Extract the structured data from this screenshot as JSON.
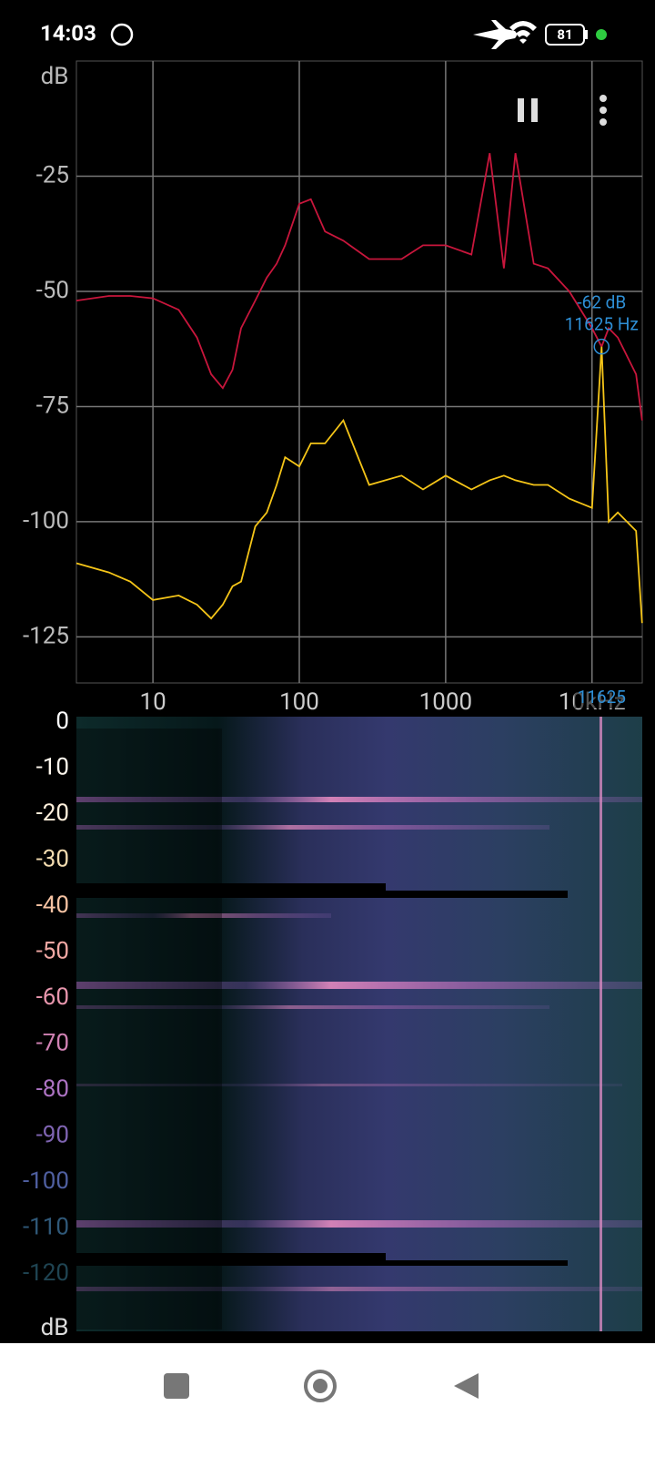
{
  "status_bar": {
    "time": "14:03",
    "battery": "81"
  },
  "chart_data": {
    "type": "line",
    "y_label": "dB",
    "log_x": true,
    "grid": true,
    "xlim": [
      3,
      22050
    ],
    "ylim": [
      -135,
      0
    ],
    "xticks": [
      10,
      100,
      1000,
      {
        "value": 10000,
        "label": "10kHz"
      }
    ],
    "yticks": [
      -25,
      -50,
      -75,
      -100,
      -125
    ],
    "x": [
      3,
      5,
      7,
      10,
      15,
      20,
      25,
      30,
      35,
      40,
      50,
      60,
      70,
      80,
      100,
      120,
      150,
      200,
      300,
      500,
      700,
      1000,
      1500,
      2000,
      2500,
      3000,
      4000,
      5000,
      7000,
      10000,
      11625,
      13000,
      15000,
      20000,
      22000
    ],
    "series": [
      {
        "color": "#c8163c",
        "values": [
          -52,
          -51,
          -51,
          -51.5,
          -54,
          -60,
          -68,
          -71,
          -67,
          -58,
          -52,
          -47,
          -44,
          -40,
          -31,
          -30,
          -37,
          -39,
          -43,
          -43,
          -40,
          -40,
          -42,
          -20,
          -45,
          -20,
          -44,
          -45,
          -50,
          -58,
          -62,
          -58,
          -60,
          -68,
          -78
        ]
      },
      {
        "color": "#f5c518",
        "values": [
          -109,
          -111,
          -113,
          -117,
          -116,
          -118,
          -121,
          -118,
          -114,
          -113,
          -101,
          -98,
          -92,
          -86,
          -88,
          -83,
          -83,
          -78,
          -92,
          -90,
          -93,
          -90,
          -93,
          -91,
          -90,
          -91,
          -92,
          -92,
          -95,
          -97,
          -62,
          -100,
          -98,
          -102,
          -122
        ]
      }
    ],
    "cursor": {
      "x": 11625,
      "y": -62,
      "label_db": "-62 dB",
      "label_hz": "11625 Hz",
      "axis_label": "11625",
      "color": "#2e8fd6"
    }
  },
  "spectrogram_scale": {
    "label": "dB",
    "ticks": [
      0,
      -10,
      -20,
      -30,
      -40,
      -50,
      -60,
      -70,
      -80,
      -90,
      -100,
      -110,
      -120
    ],
    "colors": [
      "#ffffff",
      "#fff8ee",
      "#fff0dc",
      "#f3dcb0",
      "#f5c2a2",
      "#f1a8a4",
      "#e896ad",
      "#d182b4",
      "#ac72c2",
      "#7f64b2",
      "#4f5fa0",
      "#2f5878",
      "#1f4452"
    ]
  }
}
